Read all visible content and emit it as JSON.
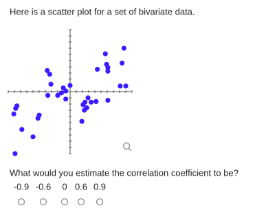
{
  "header": {
    "title": "Here is a scatter plot for a set of bivariate data."
  },
  "chart_data": {
    "type": "scatter",
    "color": "#3a1cff",
    "xlim": [
      -10,
      10
    ],
    "ylim": [
      -10,
      10
    ],
    "x": [
      8.7,
      5.7,
      8.4,
      5.9,
      6.1,
      6.1,
      4.4,
      -3.7,
      -3.3,
      -3.1,
      8.1,
      9.0,
      0,
      -1.1,
      -0.7,
      -1.4,
      -3.6,
      -2.0,
      -0.7,
      2.9,
      2.4,
      3.4,
      4.2,
      6.1,
      2.1,
      2.7,
      2.3,
      -8.6,
      -8.8,
      -9.1,
      -5.0,
      -5.2,
      1.9,
      -7.8,
      -6.0,
      -8.9
    ],
    "values": [
      7.0,
      6.1,
      4.6,
      4.4,
      3.9,
      3.3,
      3.6,
      3.4,
      2.8,
      1.2,
      0.9,
      0.9,
      1.0,
      0.6,
      0.1,
      -0.2,
      -0.6,
      -0.6,
      -1.2,
      -1.0,
      -1.7,
      -1.7,
      -1.6,
      -1.4,
      -2.1,
      -2.6,
      -3.0,
      -2.3,
      -2.7,
      -3.6,
      -3.8,
      -4.3,
      -4.8,
      -6.1,
      -7.3,
      -10.0
    ]
  },
  "question": {
    "text": "What would you estimate the correlation coefficient to be?",
    "options": [
      "-0.9",
      "-0.6",
      "0",
      "0.6",
      "0.9"
    ]
  }
}
